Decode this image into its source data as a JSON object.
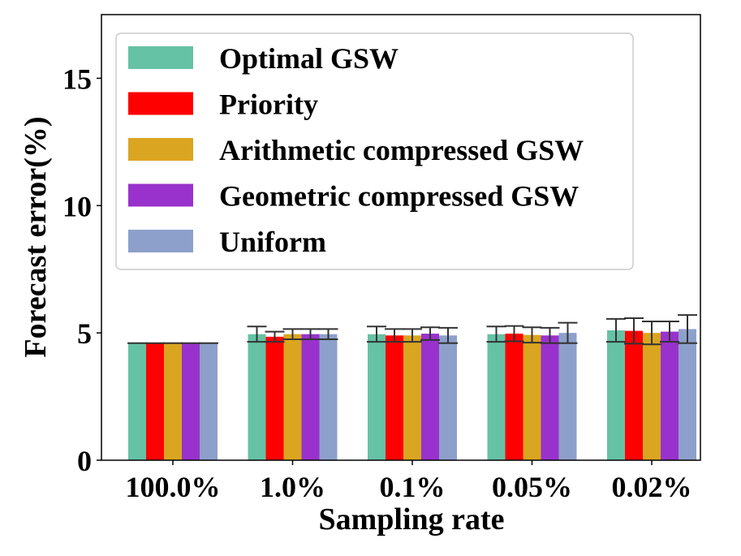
{
  "chart_data": {
    "type": "bar",
    "title": "",
    "xlabel": "Sampling rate",
    "ylabel": "Forecast error(%)",
    "ylim": [
      0,
      17.5
    ],
    "yticks": [
      0,
      5,
      10,
      15
    ],
    "categories": [
      "100.0%",
      "1.0%",
      "0.1%",
      "0.05%",
      "0.02%"
    ],
    "grid": false,
    "legend_position": "top-left",
    "series": [
      {
        "name": "Optimal GSW",
        "color": "#66c2a5",
        "values": [
          4.6,
          4.95,
          4.95,
          4.95,
          5.1
        ],
        "errors": [
          0.0,
          0.3,
          0.3,
          0.3,
          0.45
        ]
      },
      {
        "name": "Priority",
        "color": "#ff0000",
        "values": [
          4.6,
          4.85,
          4.9,
          4.97,
          5.08
        ],
        "errors": [
          0.0,
          0.2,
          0.25,
          0.3,
          0.5
        ]
      },
      {
        "name": "Arithmetic compressed GSW",
        "color": "#daa520",
        "values": [
          4.6,
          4.95,
          4.9,
          4.92,
          5.0
        ],
        "errors": [
          0.0,
          0.2,
          0.25,
          0.3,
          0.45
        ]
      },
      {
        "name": "Geometric compressed GSW",
        "color": "#9932cc",
        "values": [
          4.6,
          4.95,
          4.97,
          4.9,
          5.05
        ],
        "errors": [
          0.0,
          0.2,
          0.25,
          0.3,
          0.4
        ]
      },
      {
        "name": "Uniform",
        "color": "#8da0cb",
        "values": [
          4.6,
          4.95,
          4.9,
          5.0,
          5.15
        ],
        "errors": [
          0.0,
          0.2,
          0.3,
          0.4,
          0.55
        ]
      }
    ]
  }
}
